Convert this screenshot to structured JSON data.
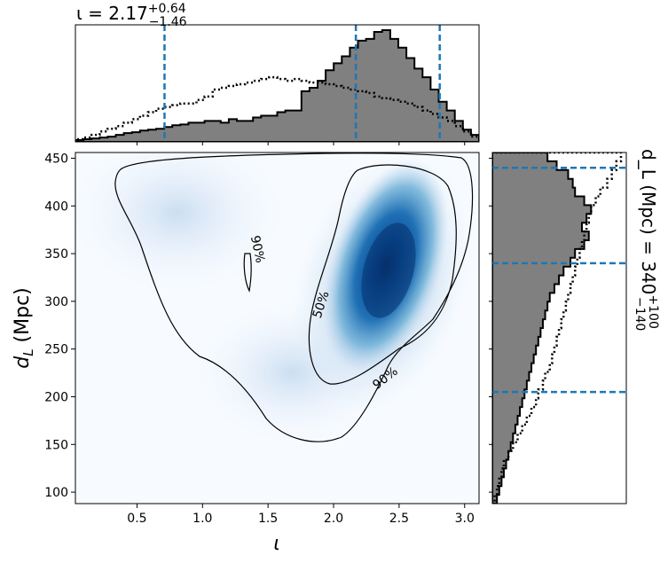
{
  "chart_data": {
    "type": "heatmap",
    "title": "",
    "xlabel": "ι",
    "ylabel": "d_L (Mpc)",
    "xlim": [
      0.03,
      3.11
    ],
    "ylim": [
      88,
      456
    ],
    "xticks": [
      0.5,
      1.0,
      1.5,
      2.0,
      2.5,
      3.0
    ],
    "xtick_labels": [
      "0.5",
      "1.0",
      "1.5",
      "2.0",
      "2.5",
      "3.0"
    ],
    "yticks": [
      100,
      150,
      200,
      250,
      300,
      350,
      400,
      450
    ],
    "ytick_labels": [
      "100",
      "150",
      "200",
      "250",
      "300",
      "350",
      "400",
      "450"
    ],
    "colormap": "Blues",
    "density_peak": {
      "x": 2.37,
      "y": 330
    },
    "contours": [
      {
        "label": "50%",
        "label_at": {
          "x": 1.9,
          "y": 300
        }
      },
      {
        "label": "90%",
        "label_at": {
          "x": 2.4,
          "y": 215
        }
      },
      {
        "label": "90%",
        "label_at": {
          "x": 1.38,
          "y": 337
        }
      }
    ],
    "top_marginal": {
      "summary_prefix": "ι = 2.17",
      "summary_sup": "+0.64",
      "summary_sub": "−1.46",
      "quantile_lines": [
        0.71,
        2.17,
        2.81
      ],
      "bins_start": 0.03,
      "bin_width": 0.0616,
      "posterior_counts": [
        2,
        3,
        4,
        5,
        6,
        8,
        10,
        11,
        13,
        14,
        15,
        17,
        19,
        20,
        22,
        22,
        24,
        24,
        22,
        26,
        24,
        24,
        28,
        30,
        30,
        34,
        36,
        36,
        58,
        62,
        70,
        82,
        90,
        98,
        108,
        116,
        118,
        126,
        128,
        118,
        108,
        96,
        84,
        74,
        60,
        46,
        36,
        24,
        14,
        8
      ],
      "prior_counts": [
        3,
        5,
        8,
        12,
        15,
        18,
        22,
        26,
        30,
        34,
        38,
        40,
        42,
        44,
        44,
        48,
        52,
        60,
        62,
        64,
        66,
        68,
        70,
        72,
        74,
        72,
        70,
        72,
        70,
        68,
        68,
        66,
        64,
        62,
        60,
        58,
        56,
        52,
        50,
        48,
        46,
        44,
        40,
        36,
        32,
        28,
        24,
        18,
        12,
        6
      ]
    },
    "right_marginal": {
      "summary_prefix": "d_L (Mpc) = 340",
      "summary_sup": "+100",
      "summary_sub": "−140",
      "quantile_lines": [
        440,
        340,
        205
      ],
      "bins_start": 88,
      "bin_width": 9.2,
      "posterior_counts": [
        4,
        6,
        8,
        10,
        12,
        14,
        16,
        18,
        20,
        22,
        24,
        26,
        28,
        30,
        32,
        34,
        36,
        38,
        40,
        42,
        44,
        46,
        48,
        50,
        54,
        58,
        62,
        68,
        72,
        80,
        84,
        78,
        82,
        86,
        80,
        72,
        70,
        66,
        56,
        48
      ],
      "prior_counts": [
        2,
        4,
        6,
        8,
        10,
        14,
        18,
        22,
        26,
        30,
        34,
        38,
        40,
        44,
        46,
        50,
        52,
        54,
        56,
        58,
        60,
        62,
        64,
        66,
        68,
        70,
        72,
        74,
        76,
        78,
        80,
        82,
        84,
        86,
        90,
        94,
        100,
        104,
        108,
        112
      ]
    }
  }
}
